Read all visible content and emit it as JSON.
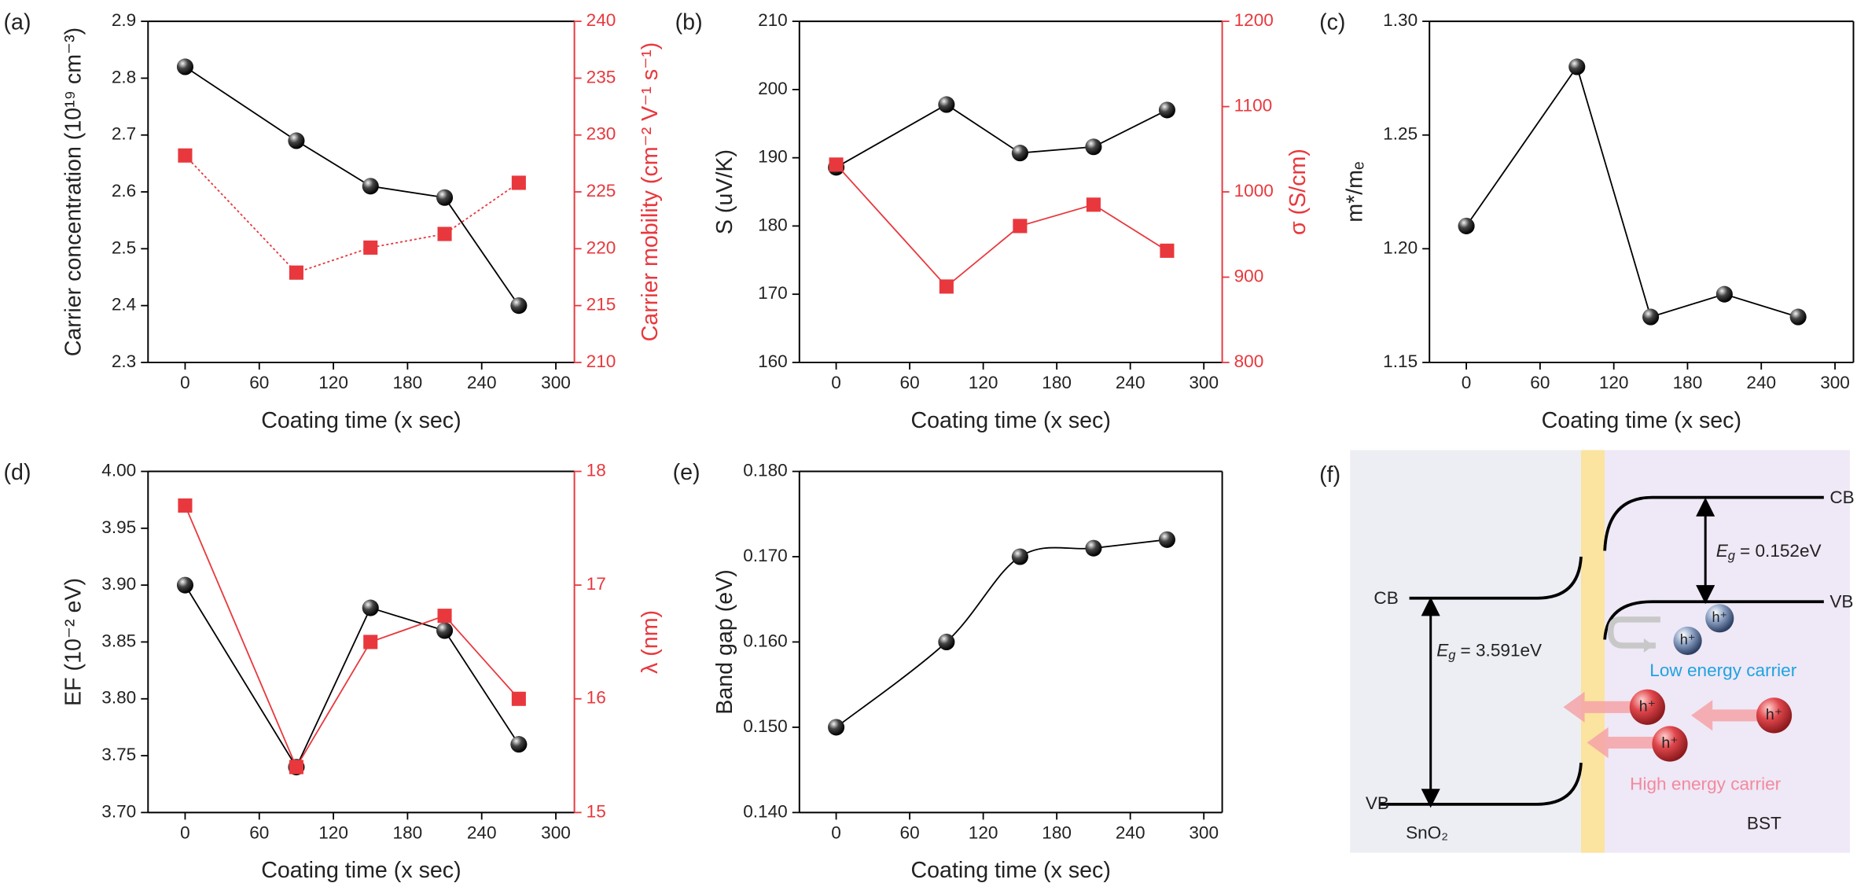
{
  "chart_data": [
    {
      "type": "line",
      "label": "(a)",
      "xlabel": "Coating time (x sec)",
      "ylabel": "Carrier concentration (10¹⁹ cm⁻³)",
      "y2label": "Carrier mobility (cm⁻² V⁻¹ s⁻¹)",
      "x": [
        0,
        90,
        150,
        210,
        270
      ],
      "xlim": [
        -30,
        315
      ],
      "xticks": [
        0,
        60,
        120,
        180,
        240,
        300
      ],
      "ylim": [
        2.3,
        2.9
      ],
      "yticks": [
        2.3,
        2.4,
        2.5,
        2.6,
        2.7,
        2.8,
        2.9
      ],
      "y2lim": [
        210,
        240
      ],
      "y2ticks": [
        210,
        215,
        220,
        225,
        230,
        235,
        240
      ],
      "series": [
        {
          "color": "#000000",
          "marker": "sphere",
          "values": [
            2.82,
            2.69,
            2.61,
            2.59,
            2.4
          ]
        },
        {
          "color": "#e8383d",
          "marker": "square",
          "line_style": "dotted",
          "axis": "y2",
          "values": [
            228.2,
            217.9,
            220.1,
            221.3,
            225.8
          ]
        }
      ]
    },
    {
      "type": "line",
      "label": "(b)",
      "xlabel": "Coating time (x sec)",
      "ylabel": "S (uV/K)",
      "y2label": "σ (S/cm)",
      "x": [
        0,
        90,
        150,
        210,
        270
      ],
      "xlim": [
        -30,
        315
      ],
      "xticks": [
        0,
        60,
        120,
        180,
        240,
        300
      ],
      "ylim": [
        160,
        210
      ],
      "yticks": [
        160,
        170,
        180,
        190,
        200,
        210
      ],
      "y2lim": [
        800,
        1200
      ],
      "y2ticks": [
        800,
        900,
        1000,
        1100,
        1200
      ],
      "series": [
        {
          "color": "#000000",
          "marker": "sphere",
          "values": [
            188.6,
            197.8,
            190.7,
            191.6,
            197
          ]
        },
        {
          "color": "#e8383d",
          "marker": "square",
          "axis": "y2",
          "values": [
            1032,
            889,
            960,
            985,
            931
          ]
        }
      ]
    },
    {
      "type": "line",
      "label": "(c)",
      "xlabel": "Coating time (x sec)",
      "ylabel": "m*/mₑ",
      "x": [
        0,
        90,
        150,
        210,
        270
      ],
      "xlim": [
        -30,
        315
      ],
      "xticks": [
        0,
        60,
        120,
        180,
        240,
        300
      ],
      "ylim": [
        1.15,
        1.3
      ],
      "yticks": [
        1.15,
        {
          "value": 1.2,
          "label": "1.20"
        },
        1.25,
        {
          "value": 1.3,
          "label": "1.30"
        }
      ],
      "series": [
        {
          "color": "#000000",
          "marker": "sphere",
          "values": [
            1.21,
            1.28,
            1.17,
            1.18,
            1.17
          ]
        }
      ]
    },
    {
      "type": "line",
      "label": "(d)",
      "xlabel": "Coating time (x sec)",
      "ylabel": "EF (10⁻² eV)",
      "y2label": "λ (nm)",
      "x": [
        0,
        90,
        150,
        210,
        270
      ],
      "xlim": [
        -30,
        315
      ],
      "xticks": [
        0,
        60,
        120,
        180,
        240,
        300
      ],
      "ylim": [
        3.7,
        4.0
      ],
      "yticks": [
        {
          "value": 3.7,
          "label": "3.70"
        },
        3.75,
        {
          "value": 3.8,
          "label": "3.80"
        },
        3.85,
        {
          "value": 3.9,
          "label": "3.90"
        },
        3.95,
        {
          "value": 4.0,
          "label": "4.00"
        }
      ],
      "y2lim": [
        15,
        18
      ],
      "y2ticks": [
        15,
        16,
        17,
        18
      ],
      "series": [
        {
          "color": "#000000",
          "marker": "sphere",
          "values": [
            3.9,
            3.74,
            3.88,
            3.86,
            3.76
          ]
        },
        {
          "color": "#e8383d",
          "marker": "square",
          "axis": "y2",
          "values": [
            17.7,
            15.4,
            16.5,
            16.73,
            16.0
          ]
        }
      ]
    },
    {
      "type": "line",
      "label": "(e)",
      "xlabel": "Coating time (x sec)",
      "ylabel": "Band gap (eV)",
      "x": [
        0,
        90,
        150,
        210,
        270
      ],
      "xlim": [
        -30,
        315
      ],
      "xticks": [
        0,
        60,
        120,
        180,
        240,
        300
      ],
      "ylim": [
        0.14,
        0.18
      ],
      "yticks": [
        {
          "value": 0.14,
          "label": "0.140"
        },
        {
          "value": 0.15,
          "label": "0.150"
        },
        {
          "value": 0.16,
          "label": "0.160"
        },
        {
          "value": 0.17,
          "label": "0.170"
        },
        {
          "value": 0.18,
          "label": "0.180"
        }
      ],
      "series": [
        {
          "color": "#000000",
          "marker": "sphere",
          "smooth": true,
          "values": [
            0.15,
            0.16,
            0.17,
            0.171,
            0.172
          ]
        }
      ]
    }
  ],
  "diagram": {
    "label": "(f)",
    "sno2": {
      "name": "SnO₂",
      "cb": "CB",
      "vb": "VB",
      "gap": {
        "symbol": "E",
        "subscript": "g",
        "value": "= 3.591eV"
      }
    },
    "bst": {
      "name": "BST",
      "cb": "CB",
      "vb": "VB",
      "gap": {
        "symbol": "E",
        "subscript": "g",
        "value": "= 0.152eV"
      }
    },
    "low_energy": "Low energy carrier",
    "high_energy": "High energy carrier",
    "carriers": [
      "h⁺",
      "h⁺",
      "h⁺",
      "h⁺",
      "h⁺"
    ]
  }
}
